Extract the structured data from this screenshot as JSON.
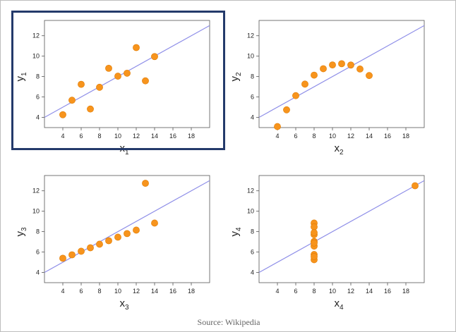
{
  "caption": "Source: Wikipedia",
  "colors": {
    "point": "#f7941d",
    "point_edge": "#e07b00",
    "fit_line": "#8e8ee8",
    "axis": "#555555",
    "text": "#222222",
    "highlight_border": "#243a6b"
  },
  "chart_data": [
    {
      "type": "scatter",
      "xlabel": "x",
      "xlabel_sub": "1",
      "ylabel": "y",
      "ylabel_sub": "1",
      "xticks": [
        4,
        6,
        8,
        10,
        12,
        14,
        16,
        18
      ],
      "yticks": [
        4,
        6,
        8,
        10,
        12
      ],
      "xlim": [
        2,
        20
      ],
      "ylim": [
        3,
        13.5
      ],
      "grid": false,
      "highlighted": true,
      "fit_line": {
        "slope": 0.5,
        "intercept": 3.0
      },
      "x": [
        10,
        8,
        13,
        9,
        11,
        14,
        6,
        4,
        12,
        7,
        5
      ],
      "y": [
        8.04,
        6.95,
        7.58,
        8.81,
        8.33,
        9.96,
        7.24,
        4.26,
        10.84,
        4.82,
        5.68
      ]
    },
    {
      "type": "scatter",
      "xlabel": "x",
      "xlabel_sub": "2",
      "ylabel": "y",
      "ylabel_sub": "2",
      "xticks": [
        4,
        6,
        8,
        10,
        12,
        14,
        16,
        18
      ],
      "yticks": [
        4,
        6,
        8,
        10,
        12
      ],
      "xlim": [
        2,
        20
      ],
      "ylim": [
        3,
        13.5
      ],
      "grid": false,
      "highlighted": false,
      "fit_line": {
        "slope": 0.5,
        "intercept": 3.0
      },
      "x": [
        10,
        8,
        13,
        9,
        11,
        14,
        6,
        4,
        12,
        7,
        5
      ],
      "y": [
        9.14,
        8.14,
        8.74,
        8.77,
        9.26,
        8.1,
        6.13,
        3.1,
        9.13,
        7.26,
        4.74
      ]
    },
    {
      "type": "scatter",
      "xlabel": "x",
      "xlabel_sub": "3",
      "ylabel": "y",
      "ylabel_sub": "3",
      "xticks": [
        4,
        6,
        8,
        10,
        12,
        14,
        16,
        18
      ],
      "yticks": [
        4,
        6,
        8,
        10,
        12
      ],
      "xlim": [
        2,
        20
      ],
      "ylim": [
        3,
        13.5
      ],
      "grid": false,
      "highlighted": false,
      "fit_line": {
        "slope": 0.5,
        "intercept": 3.0
      },
      "x": [
        10,
        8,
        13,
        9,
        11,
        14,
        6,
        4,
        12,
        7,
        5
      ],
      "y": [
        7.46,
        6.77,
        12.74,
        7.11,
        7.81,
        8.84,
        6.08,
        5.39,
        8.15,
        6.42,
        5.73
      ]
    },
    {
      "type": "scatter",
      "xlabel": "x",
      "xlabel_sub": "4",
      "ylabel": "y",
      "ylabel_sub": "4",
      "xticks": [
        4,
        6,
        8,
        10,
        12,
        14,
        16,
        18
      ],
      "yticks": [
        4,
        6,
        8,
        10,
        12
      ],
      "xlim": [
        2,
        20
      ],
      "ylim": [
        3,
        13.5
      ],
      "grid": false,
      "highlighted": false,
      "fit_line": {
        "slope": 0.5,
        "intercept": 3.0
      },
      "x": [
        8,
        8,
        8,
        8,
        8,
        8,
        8,
        19,
        8,
        8,
        8
      ],
      "y": [
        6.58,
        5.76,
        7.71,
        8.84,
        8.47,
        7.04,
        5.25,
        12.5,
        5.56,
        7.91,
        6.89
      ]
    }
  ]
}
